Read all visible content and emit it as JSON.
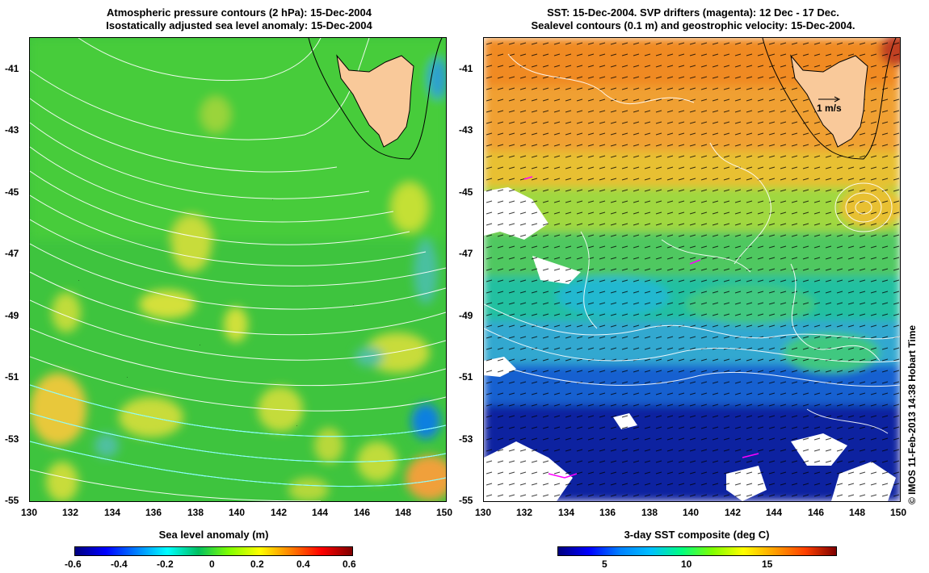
{
  "left_panel": {
    "title_line1": "Atmospheric pressure contours (2 hPa): 15-Dec-2004",
    "title_line2": "Isostatically adjusted sea level anomaly: 15-Dec-2004",
    "colorbar_label": "Sea level anomaly (m)",
    "colorbar_ticks": [
      "-0.6",
      "-0.4",
      "-0.2",
      "0",
      "0.2",
      "0.4",
      "0.6"
    ],
    "colorbar_colors": [
      "#00007f",
      "#0000ff",
      "#0080ff",
      "#00ffff",
      "#00c060",
      "#80ff00",
      "#ffff00",
      "#ff8000",
      "#ff0000",
      "#7f0000"
    ]
  },
  "right_panel": {
    "title_line1": "SST: 15-Dec-2004. SVP drifters (magenta): 12 Dec - 17 Dec.",
    "title_line2": "Sealevel contours (0.1 m) and geostrophic velocity: 15-Dec-2004.",
    "colorbar_label": "3-day SST composite (deg C)",
    "colorbar_ticks": [
      "5",
      "10",
      "15"
    ],
    "velocity_scale_label": "1 m/s",
    "colorbar_colors": [
      "#00007f",
      "#0000ff",
      "#0080ff",
      "#00c0ff",
      "#00ff80",
      "#80ff00",
      "#ffff00",
      "#ffa000",
      "#ff4000",
      "#7f0000"
    ]
  },
  "axes": {
    "x_ticks": [
      "130",
      "132",
      "134",
      "136",
      "138",
      "140",
      "142",
      "144",
      "146",
      "148",
      "150"
    ],
    "y_ticks": [
      "-41",
      "-43",
      "-45",
      "-47",
      "-49",
      "-51",
      "-53",
      "-55"
    ]
  },
  "credit": "© IMOS 11-Feb-2013 14:38 Hobart Time",
  "colors": {
    "land": "#f9c99a",
    "contour_white": "#ffffff",
    "contour_cyan": "#80ffff",
    "drifter": "#ff00ff"
  }
}
